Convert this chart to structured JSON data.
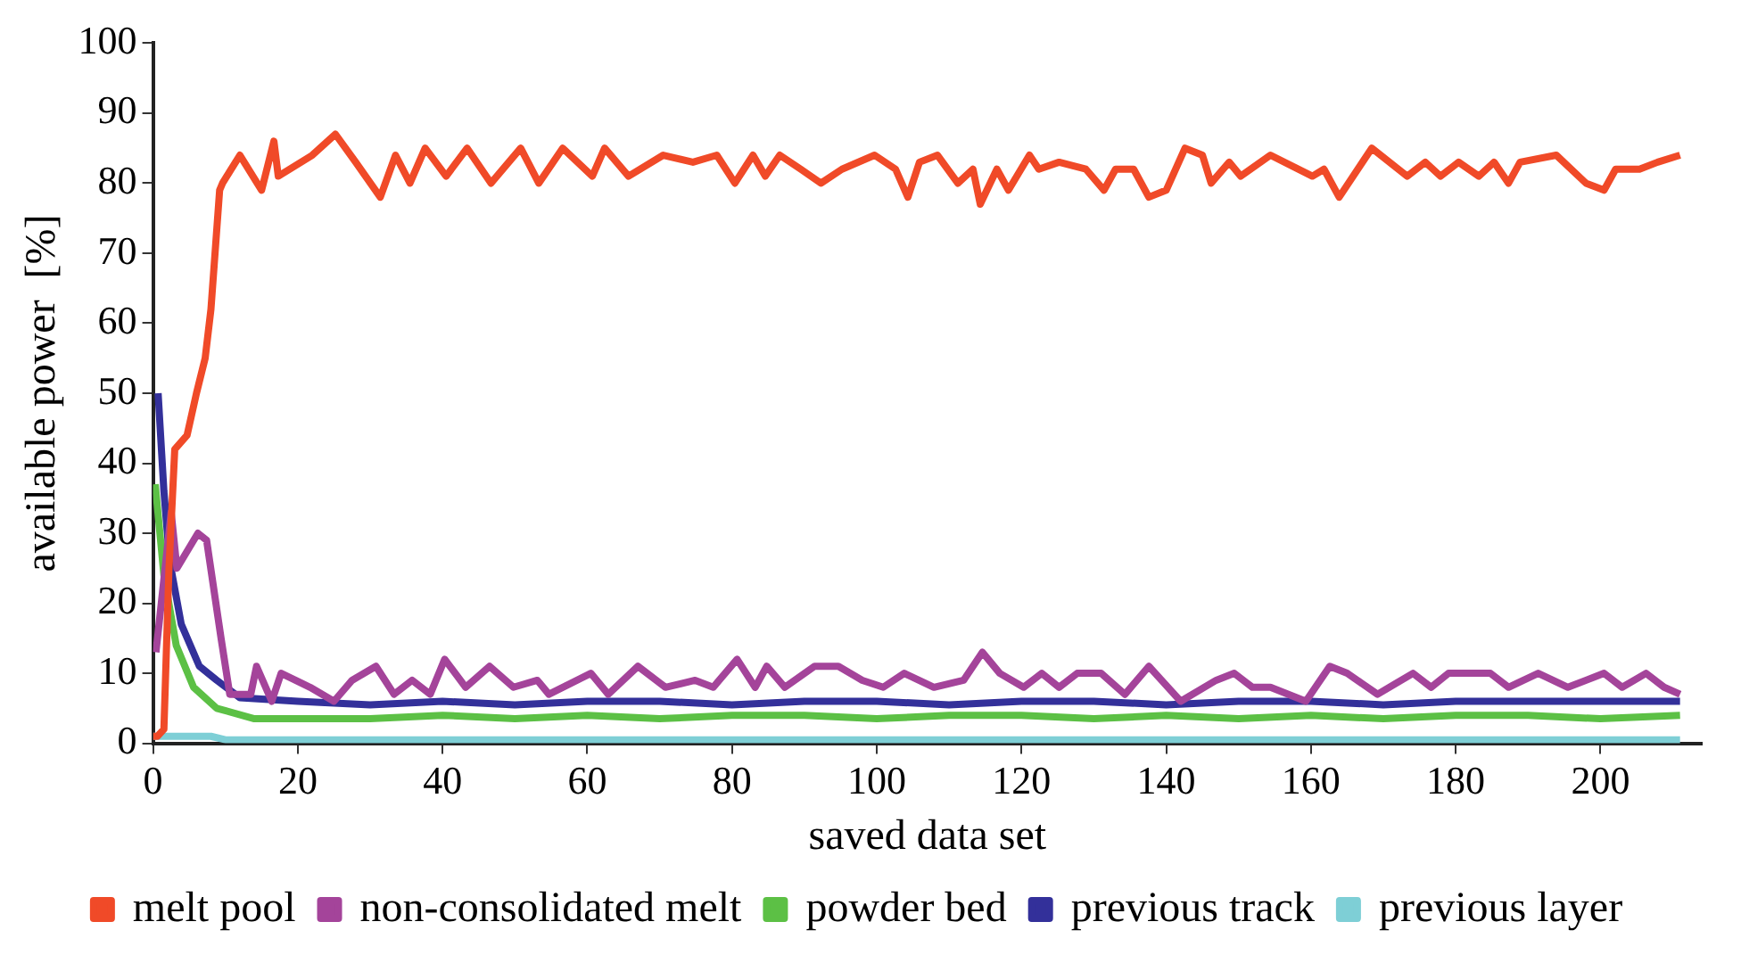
{
  "chart_data": {
    "type": "line",
    "xlabel": "saved data set",
    "ylabel": "available power  [%]",
    "xlim": [
      0,
      214
    ],
    "xticks": [
      0,
      20,
      40,
      60,
      80,
      100,
      120,
      140,
      160,
      180,
      200
    ],
    "ylim": [
      0,
      100
    ],
    "yticks": [
      0,
      10,
      20,
      30,
      40,
      50,
      60,
      70,
      80,
      90,
      100
    ],
    "grid": false,
    "legend": "bottom",
    "marker": "none",
    "line_style": "solid",
    "series": [
      {
        "name": "melt pool",
        "color": "#f04a28",
        "x": [
          0,
          0.6,
          1.5,
          2.2,
          3,
          4.7,
          6,
          7.2,
          8,
          9.2,
          9.6,
          12,
          15,
          16.7,
          17.3,
          22,
          25.2,
          28,
          31.4,
          33.5,
          35.5,
          37.6,
          40.5,
          43.4,
          46.7,
          50.8,
          53.3,
          56.6,
          60.7,
          62.4,
          65.7,
          70.5,
          74.6,
          77.9,
          80.4,
          82.9,
          84.6,
          86.6,
          89.5,
          92.3,
          95.2,
          99.7,
          102.6,
          104.3,
          105.9,
          108.4,
          111.2,
          113.3,
          114.3,
          116.6,
          118.2,
          121.1,
          122.4,
          125.2,
          128.9,
          131.4,
          133,
          135.5,
          137.6,
          140,
          142.6,
          145,
          146.2,
          148.7,
          150.3,
          154.4,
          160.2,
          161.8,
          163.9,
          168.4,
          173.3,
          175.8,
          177.9,
          180.4,
          183.2,
          185.3,
          187.3,
          188.9,
          193.9,
          198,
          200.5,
          202.1,
          205.4,
          207.9,
          211
        ],
        "values": [
          1,
          1,
          2,
          25,
          42,
          44,
          50,
          55,
          62,
          79,
          80,
          84,
          79,
          86,
          81,
          84,
          87,
          83,
          78,
          84,
          80,
          85,
          81,
          85,
          80,
          85,
          80,
          85,
          81,
          85,
          81,
          84,
          83,
          84,
          80,
          84,
          81,
          84,
          82,
          80,
          82,
          84,
          82,
          78,
          83,
          84,
          80,
          82,
          77,
          82,
          79,
          84,
          82,
          83,
          82,
          79,
          82,
          82,
          78,
          79,
          85,
          84,
          80,
          83,
          81,
          84,
          81,
          82,
          78,
          85,
          81,
          83,
          81,
          83,
          81,
          83,
          80,
          83,
          84,
          80,
          79,
          82,
          82,
          83,
          84
        ]
      },
      {
        "name": "non-consolidated melt",
        "color": "#a4449a",
        "x": [
          0.4,
          2.5,
          3.3,
          6.2,
          7.4,
          9.4,
          10.6,
          13.5,
          14.3,
          16.4,
          17.7,
          21.7,
          25,
          27.5,
          30.8,
          33.3,
          35.8,
          38.3,
          40.3,
          43.2,
          46.5,
          49.8,
          53.1,
          54.7,
          60.5,
          62.9,
          67,
          70.8,
          74.9,
          77.4,
          80.7,
          83.2,
          84.8,
          87.3,
          91.4,
          94.7,
          98,
          100.9,
          103.8,
          107.9,
          112,
          114.6,
          117,
          120.3,
          122.8,
          125.2,
          127.7,
          131,
          134.3,
          137.6,
          142,
          146.9,
          149.4,
          151.9,
          154.4,
          159.3,
          162.6,
          165,
          169.2,
          174.1,
          176.6,
          179,
          182.3,
          184.8,
          187.3,
          191.4,
          195.5,
          200.5,
          203,
          206.3,
          208.8,
          211
        ],
        "values": [
          13,
          33,
          25,
          30,
          29,
          15,
          7,
          7,
          11,
          6,
          10,
          8,
          6,
          9,
          11,
          7,
          9,
          7,
          12,
          8,
          11,
          8,
          9,
          7,
          10,
          7,
          11,
          8,
          9,
          8,
          12,
          8,
          11,
          8,
          11,
          11,
          9,
          8,
          10,
          8,
          9,
          13,
          10,
          8,
          10,
          8,
          10,
          10,
          7,
          11,
          6,
          9,
          10,
          8,
          8,
          6,
          11,
          10,
          7,
          10,
          8,
          10,
          10,
          10,
          8,
          10,
          8,
          10,
          8,
          10,
          8,
          7
        ]
      },
      {
        "name": "powder bed",
        "color": "#5cc045",
        "x": [
          0.3,
          1.5,
          3.2,
          5.6,
          8.8,
          14,
          20,
          30,
          40,
          50,
          60,
          70,
          80,
          90,
          100,
          110,
          120,
          130,
          140,
          150,
          160,
          170,
          180,
          190,
          200,
          211
        ],
        "values": [
          37,
          24,
          14,
          8,
          5,
          3.5,
          3.5,
          3.5,
          4,
          3.5,
          4,
          3.5,
          4,
          4,
          3.5,
          4,
          4,
          3.5,
          4,
          3.5,
          4,
          3.5,
          4,
          4,
          3.5,
          4
        ]
      },
      {
        "name": "previous track",
        "color": "#33309a",
        "x": [
          0.7,
          1.5,
          2.3,
          3.9,
          6.4,
          8.8,
          12,
          20,
          30,
          40,
          50,
          60,
          70,
          80,
          90,
          100,
          110,
          120,
          130,
          140,
          150,
          160,
          170,
          180,
          190,
          200,
          211
        ],
        "values": [
          50,
          36,
          26,
          17,
          11,
          9,
          6.5,
          6,
          5.5,
          6,
          5.5,
          6,
          6,
          5.5,
          6,
          6,
          5.5,
          6,
          6,
          5.5,
          6,
          6,
          5.5,
          6,
          6,
          6,
          6
        ]
      },
      {
        "name": "previous layer",
        "color": "#7ecfd6",
        "x": [
          0,
          3,
          5,
          8,
          10,
          20,
          40,
          60,
          80,
          100,
          120,
          140,
          160,
          180,
          200,
          211
        ],
        "values": [
          1,
          1,
          1,
          1,
          0.5,
          0.5,
          0.5,
          0.5,
          0.5,
          0.5,
          0.5,
          0.5,
          0.5,
          0.5,
          0.5,
          0.5
        ]
      }
    ]
  }
}
